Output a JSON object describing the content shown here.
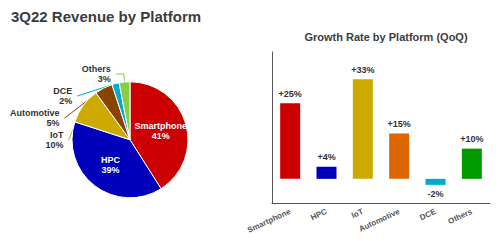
{
  "chart_data": [
    {
      "type": "pie",
      "title": "3Q22 Revenue by Platform",
      "categories": [
        "Smartphone",
        "HPC",
        "IoT",
        "Automotive",
        "DCE",
        "Others"
      ],
      "values": [
        41,
        39,
        10,
        5,
        2,
        3
      ],
      "value_labels": [
        "41%",
        "39%",
        "10%",
        "5%",
        "2%",
        "3%"
      ],
      "colors": [
        "#cc0000",
        "#0000bb",
        "#ccaa00",
        "#884400",
        "#00aacc",
        "#88cc44"
      ],
      "data_labels": true
    },
    {
      "type": "bar",
      "title": "Growth Rate by Platform (QoQ)",
      "categories": [
        "Smartphone",
        "HPC",
        "IoT",
        "Automotive",
        "DCE",
        "Others"
      ],
      "values": [
        25,
        4,
        33,
        15,
        -2,
        10
      ],
      "value_labels": [
        "+25%",
        "+4%",
        "+33%",
        "+15%",
        "-2%",
        "+10%"
      ],
      "colors": [
        "#cc0000",
        "#0000bb",
        "#ccaa00",
        "#dd6600",
        "#00aacc",
        "#009900"
      ],
      "ylim": [
        -8,
        42
      ],
      "tick_labels": "x",
      "grid": false,
      "data_labels": true
    }
  ]
}
